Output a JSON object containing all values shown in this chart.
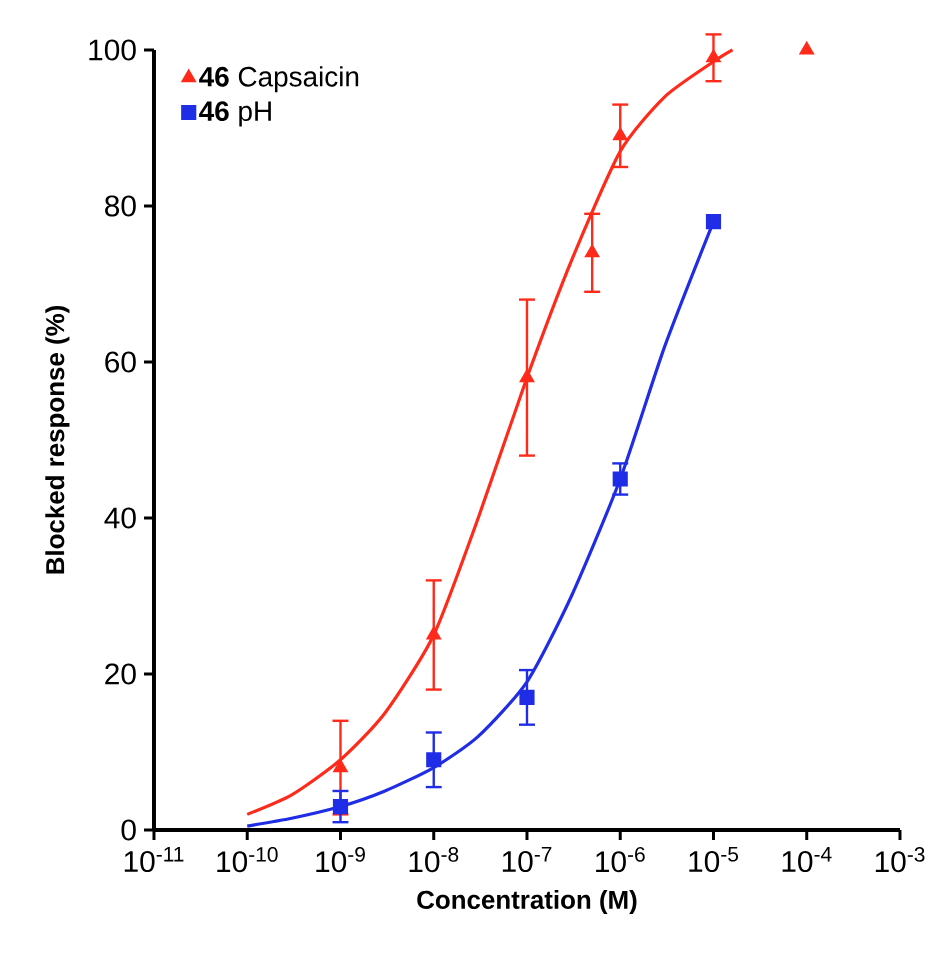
{
  "chart_data": {
    "type": "scatter",
    "xlabel": "Concentration (M)",
    "ylabel": "Blocked response (%)",
    "log": "x",
    "xlim": [
      1e-11,
      0.001
    ],
    "xticks": [
      {
        "value": 1e-11,
        "label": "10$^{-11}$"
      },
      {
        "value": 1e-10,
        "label": "10$^{-10}$"
      },
      {
        "value": 1e-09,
        "label": "10$^{-9}$"
      },
      {
        "value": 1e-08,
        "label": "10$^{-8}$"
      },
      {
        "value": 1e-07,
        "label": "10$^{-7}$"
      },
      {
        "value": 1e-06,
        "label": "10$^{-6}$"
      },
      {
        "value": 1e-05,
        "label": "10$^{-5}$"
      },
      {
        "value": 0.0001,
        "label": "10$^{-4}$"
      },
      {
        "value": 0.001,
        "label": "10$^{-3}$"
      }
    ],
    "ylim": [
      0,
      100
    ],
    "yticks": [
      0,
      20,
      40,
      60,
      80,
      100
    ],
    "legend": "top left",
    "grid": false,
    "series": [
      {
        "name": "**46** Capsaicin",
        "color": "#ff2a1a",
        "marker": "triangle",
        "x": [
          1e-09,
          1e-08,
          1e-07,
          5e-07,
          1e-06,
          1e-05,
          0.0001
        ],
        "values": [
          8,
          25,
          58,
          74,
          89,
          99,
          100
        ],
        "errors": [
          6,
          7,
          10,
          5,
          4,
          3,
          null
        ]
      },
      {
        "name": "**46** pH",
        "color": "#1f2de6",
        "marker": "square",
        "x": [
          1e-09,
          1e-08,
          1e-07,
          1e-06,
          1e-05
        ],
        "values": [
          3,
          9,
          17,
          45,
          78
        ],
        "errors": [
          2,
          3.5,
          3.5,
          2,
          null
        ]
      },
      {
        "type": "line",
        "color": "#ff2a1a",
        "marker": "none",
        "x": [
          1e-10,
          3e-10,
          1e-09,
          3e-09,
          1e-08,
          3e-08,
          1e-07,
          3e-07,
          1e-06,
          3e-06,
          1e-05,
          1.6e-05
        ],
        "values": [
          2,
          4.5,
          9,
          15,
          25,
          40,
          58,
          73,
          87,
          94,
          98.5,
          100
        ]
      },
      {
        "type": "line",
        "color": "#1f2de6",
        "marker": "none",
        "x": [
          1e-10,
          3e-10,
          1e-09,
          3e-09,
          1e-08,
          3e-08,
          1e-07,
          3e-07,
          1e-06,
          3e-06,
          1e-05
        ],
        "values": [
          0.5,
          1.5,
          3,
          5,
          8,
          12,
          19,
          30,
          45,
          62,
          78
        ]
      }
    ]
  }
}
